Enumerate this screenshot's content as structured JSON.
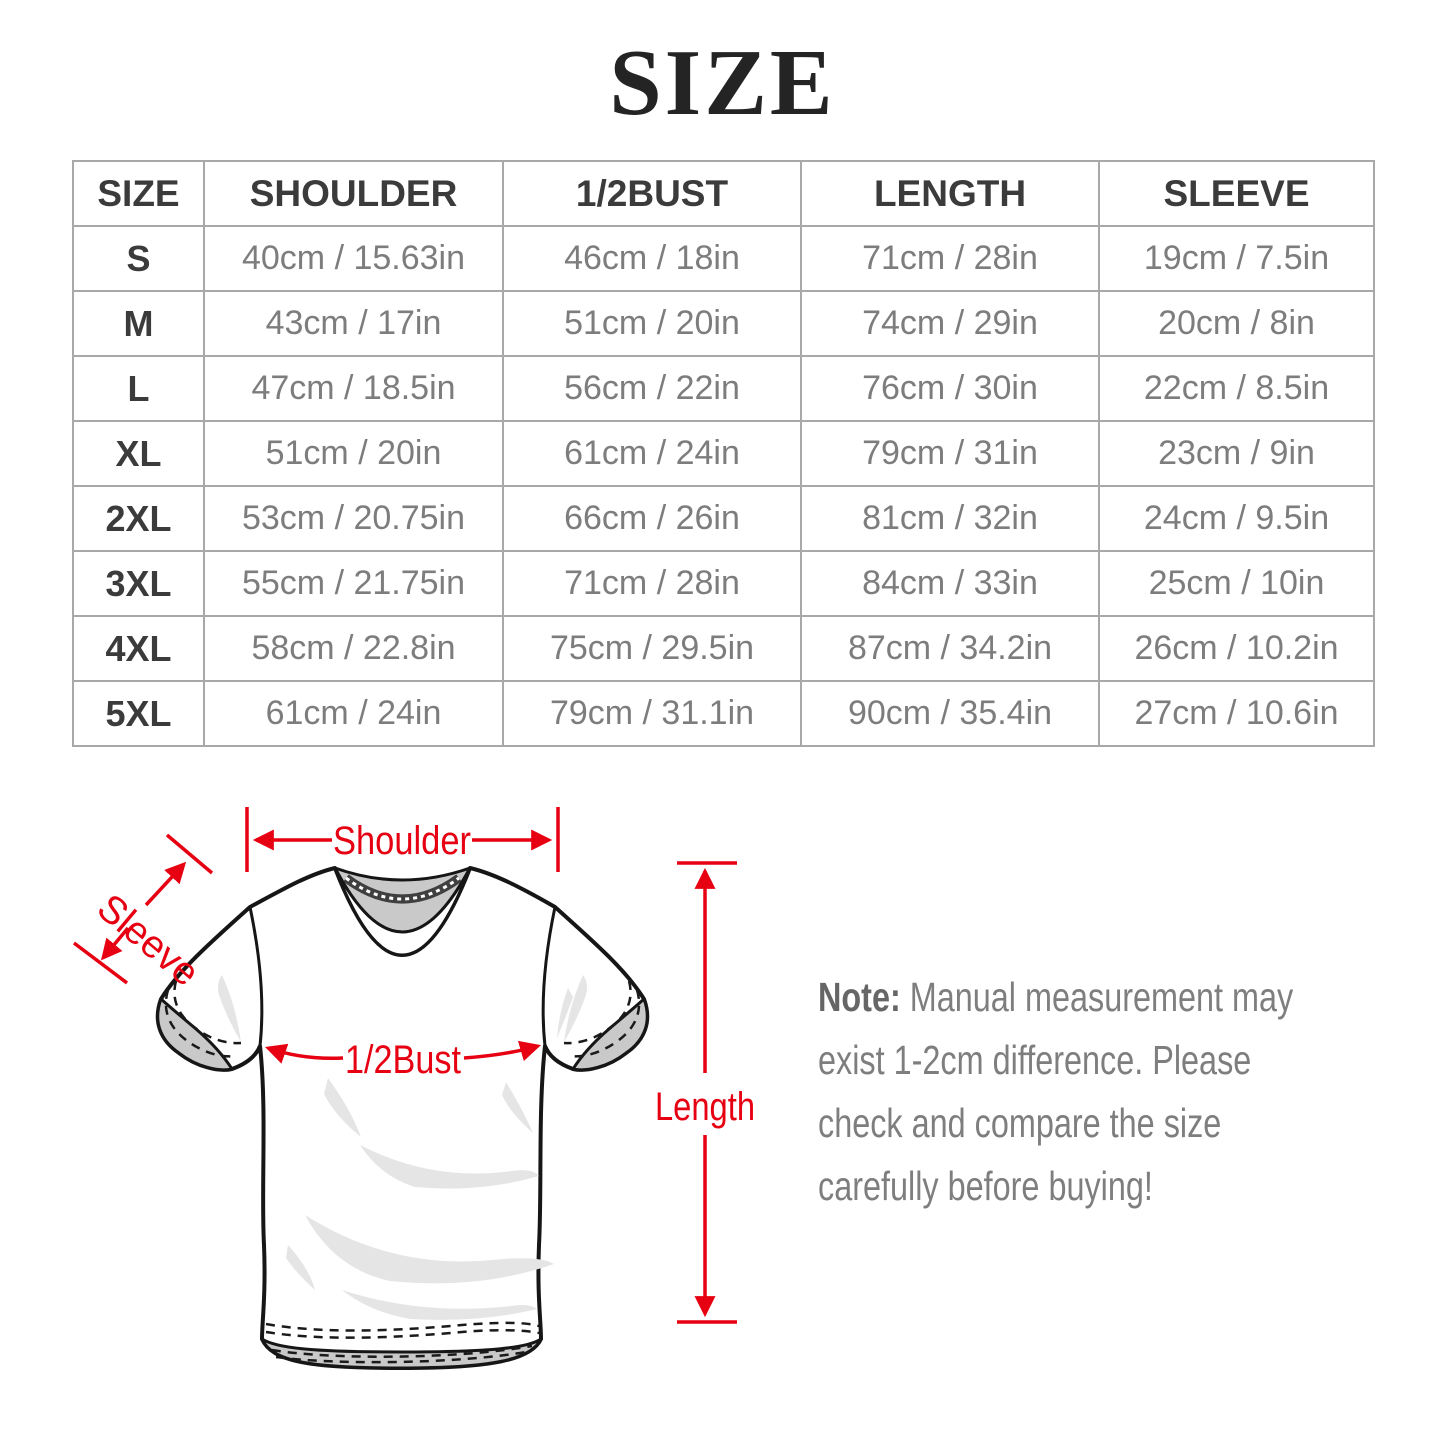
{
  "chart_data": {
    "type": "table",
    "title": "SIZE",
    "columns": [
      "SIZE",
      "SHOULDER",
      "1/2BUST",
      "LENGTH",
      "SLEEVE"
    ],
    "rows": [
      [
        "S",
        "40cm / 15.63in",
        "46cm / 18in",
        "71cm / 28in",
        "19cm / 7.5in"
      ],
      [
        "M",
        "43cm / 17in",
        "51cm / 20in",
        "74cm / 29in",
        "20cm / 8in"
      ],
      [
        "L",
        "47cm / 18.5in",
        "56cm / 22in",
        "76cm / 30in",
        "22cm / 8.5in"
      ],
      [
        "XL",
        "51cm / 20in",
        "61cm / 24in",
        "79cm / 31in",
        "23cm / 9in"
      ],
      [
        "2XL",
        "53cm / 20.75in",
        "66cm / 26in",
        "81cm / 32in",
        "24cm / 9.5in"
      ],
      [
        "3XL",
        "55cm / 21.75in",
        "71cm / 28in",
        "84cm / 33in",
        "25cm / 10in"
      ],
      [
        "4XL",
        "58cm / 22.8in",
        "75cm / 29.5in",
        "87cm / 34.2in",
        "26cm / 10.2in"
      ],
      [
        "5XL",
        "61cm / 24in",
        "79cm / 31.1in",
        "90cm / 35.4in",
        "27cm / 10.6in"
      ]
    ]
  },
  "diagram": {
    "labels": {
      "shoulder": "Shoulder",
      "sleeve": "Sleeve",
      "bust": "1/2Bust",
      "length": "Length"
    },
    "annotation_color": "#e60012"
  },
  "note": {
    "prefix": "Note:",
    "line1": " Manual measurement may",
    "line2": "exist 1-2cm difference. Please",
    "line3": "check and compare the size",
    "line4": "carefully before buying!"
  }
}
